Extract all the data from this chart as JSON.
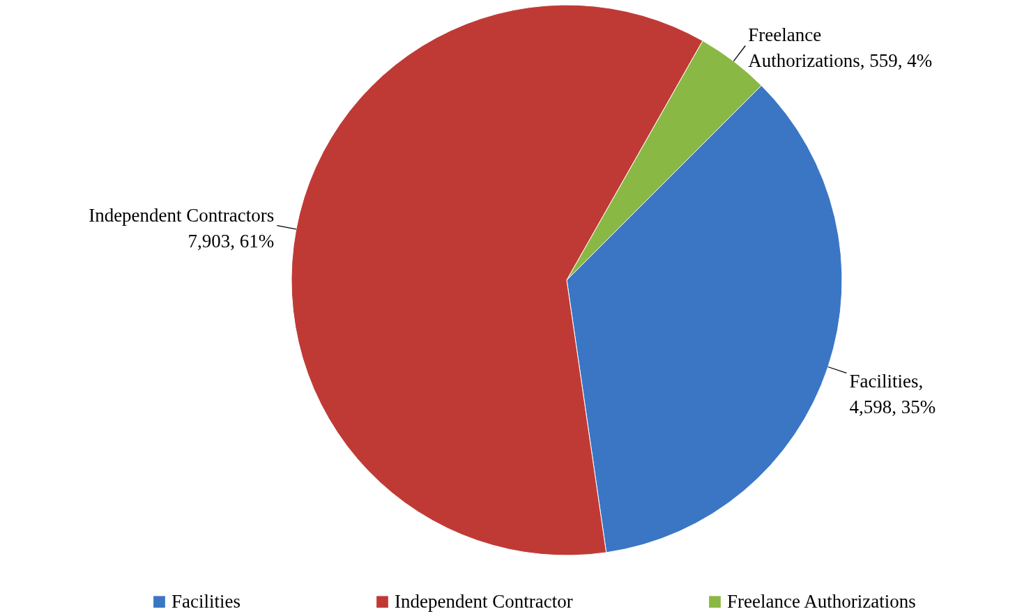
{
  "chart_data": {
    "type": "pie",
    "categories": [
      "Facilities",
      "Independent Contractor",
      "Freelance Authorizations"
    ],
    "values": [
      4598,
      7903,
      559
    ],
    "colors": [
      "#3a76c4",
      "#c03a35",
      "#8ab844"
    ],
    "value_labels": [
      "Facilities,\n4,598, 35%",
      "Independent Contractors\n7,903, 61%",
      "Freelance\nAuthorizations, 559, 4%"
    ],
    "legend": "bottom"
  }
}
